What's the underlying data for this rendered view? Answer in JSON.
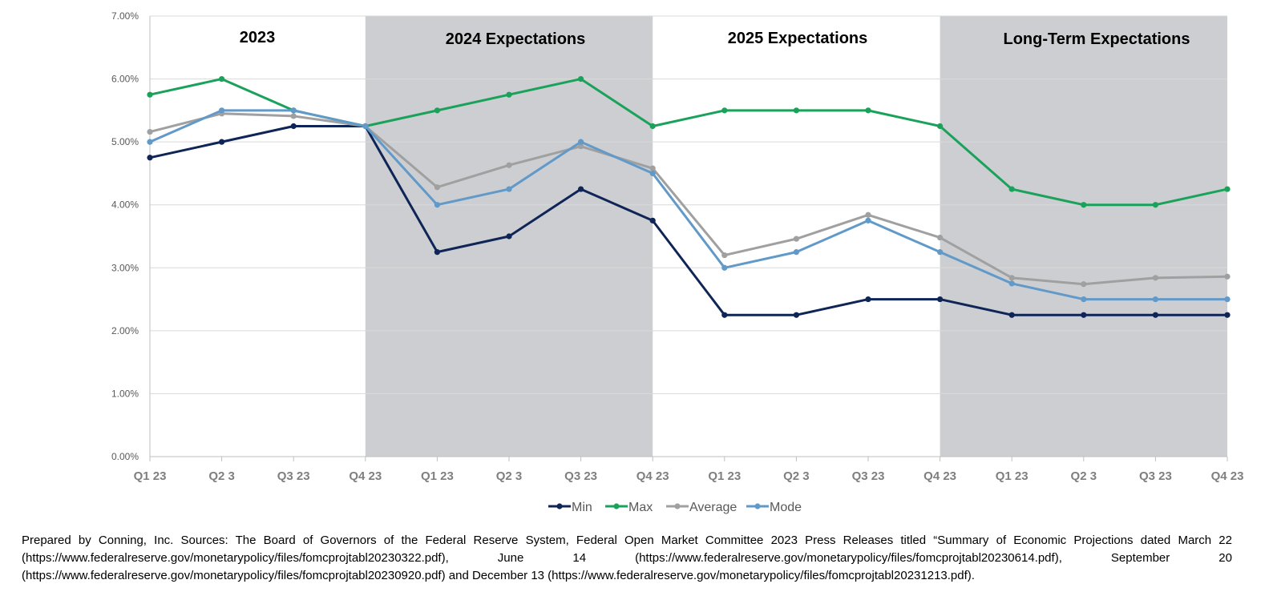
{
  "chart_data": {
    "type": "line",
    "categories": [
      "Q1 23",
      "Q2 3",
      "Q3 23",
      "Q4 23",
      "Q1 23",
      "Q2 3",
      "Q3 23",
      "Q4 23",
      "Q1 23",
      "Q2 3",
      "Q3 23",
      "Q4 23",
      "Q1 23",
      "Q2 3",
      "Q3 23",
      "Q4 23"
    ],
    "y_ticks": [
      "0.00%",
      "1.00%",
      "2.00%",
      "3.00%",
      "4.00%",
      "5.00%",
      "6.00%",
      "7.00%"
    ],
    "ylim": [
      0,
      7
    ],
    "periods": [
      {
        "label": "2023",
        "start": 0,
        "end": 3,
        "shaded": false
      },
      {
        "label": "2024 Expectations",
        "start": 3,
        "end": 7,
        "shaded": true
      },
      {
        "label": "2025 Expectations",
        "start": 7,
        "end": 11,
        "shaded": false
      },
      {
        "label": "Long-Term Expectations",
        "start": 11,
        "end": 15,
        "shaded": true
      }
    ],
    "series": [
      {
        "name": "Min",
        "color": "#0f2557",
        "values": [
          4.75,
          5.0,
          5.25,
          5.25,
          3.25,
          3.5,
          4.25,
          3.75,
          2.25,
          2.25,
          2.5,
          2.5,
          2.25,
          2.25,
          2.25,
          2.25
        ]
      },
      {
        "name": "Max",
        "color": "#1aa15a",
        "values": [
          5.75,
          6.0,
          5.5,
          5.25,
          5.5,
          5.75,
          6.0,
          5.25,
          5.5,
          5.5,
          5.5,
          5.25,
          4.25,
          4.0,
          4.0,
          4.25
        ]
      },
      {
        "name": "Average",
        "color": "#a0a0a0",
        "values": [
          5.16,
          5.45,
          5.41,
          5.25,
          4.28,
          4.63,
          4.93,
          4.58,
          3.2,
          3.46,
          3.84,
          3.48,
          2.84,
          2.74,
          2.84,
          2.86
        ]
      },
      {
        "name": "Mode",
        "color": "#6199c9",
        "values": [
          5.0,
          5.5,
          5.5,
          5.25,
          4.0,
          4.25,
          5.0,
          4.5,
          3.0,
          3.25,
          3.75,
          3.25,
          2.75,
          2.5,
          2.5,
          2.5
        ]
      }
    ],
    "colors": {
      "shade": "#ccced1",
      "grid": "#d9d9d9",
      "axis": "#bfbfbf"
    }
  },
  "footnote": "Prepared by Conning, Inc. Sources: The Board of Governors of the Federal Reserve System, Federal Open Market Committee 2023 Press Releases titled “Summary of Economic Projections dated March 22 (https://www.federalreserve.gov/monetarypolicy/files/fomcprojtabl20230322.pdf), June 14 (https://www.federalreserve.gov/monetarypolicy/files/fomcprojtabl20230614.pdf), September 20 (https://www.federalreserve.gov/monetarypolicy/files/fomcprojtabl20230920.pdf)  and December 13 (https://www.federalreserve.gov/monetarypolicy/files/fomcprojtabl20231213.pdf)."
}
